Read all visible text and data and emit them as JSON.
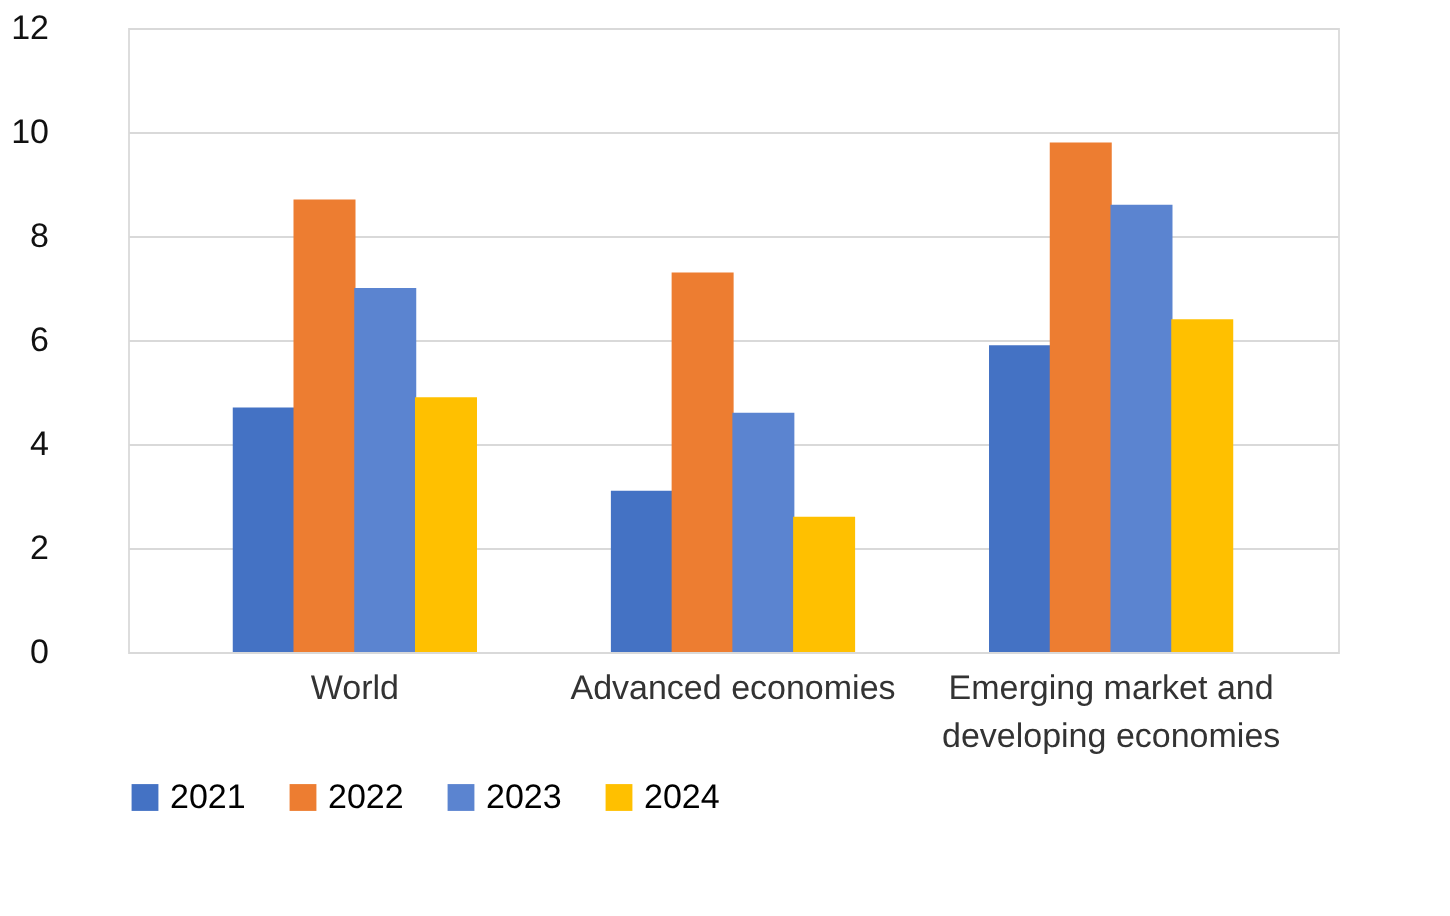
{
  "chart_data": {
    "type": "bar",
    "categories": [
      "World",
      "Advanced economies",
      "Emerging market and developing economies"
    ],
    "series": [
      {
        "name": "2021",
        "color": "#4472c4",
        "values": [
          4.7,
          3.1,
          5.9
        ]
      },
      {
        "name": "2022",
        "color": "#ed7d31",
        "values": [
          8.7,
          7.3,
          9.8
        ]
      },
      {
        "name": "2023",
        "color": "#5b84d0",
        "values": [
          7.0,
          4.6,
          8.6
        ]
      },
      {
        "name": "2024",
        "color": "#ffc000",
        "values": [
          4.9,
          2.6,
          6.4
        ]
      }
    ],
    "ylim": [
      0,
      12
    ],
    "yticks": [
      0,
      2,
      4,
      6,
      8,
      10,
      12
    ],
    "grid": "y",
    "legend": "bottom"
  }
}
